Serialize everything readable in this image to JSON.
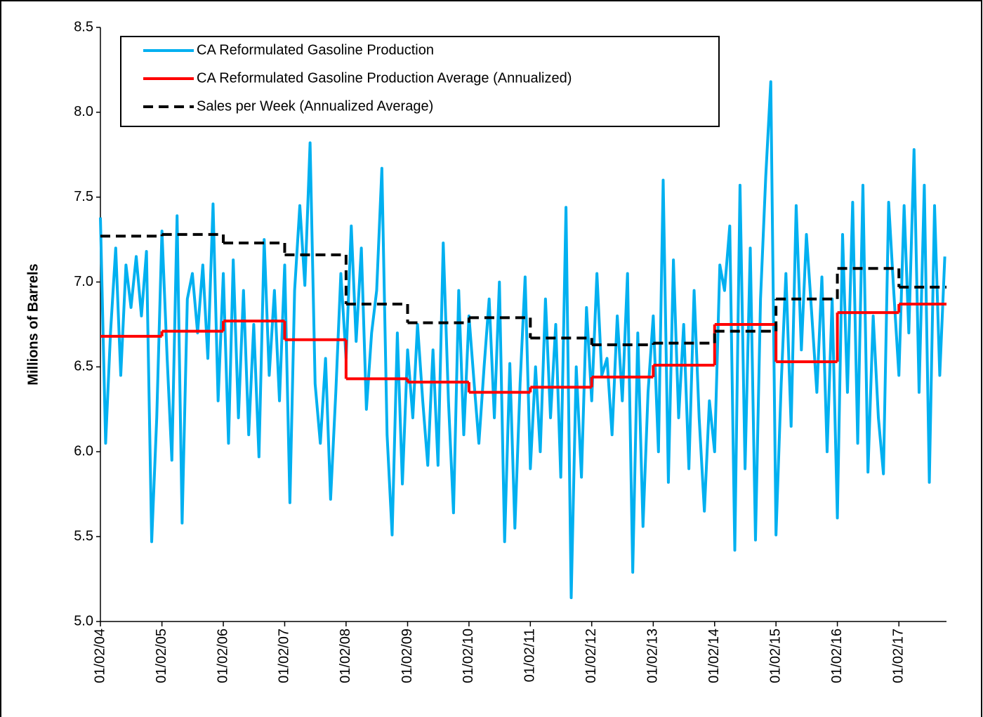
{
  "chart_data": {
    "type": "line",
    "ylabel": "Millions of Barrels",
    "ylim": [
      5,
      8.5
    ],
    "yticks": [
      {
        "value": 5,
        "label": "5.0"
      },
      5.5,
      {
        "value": 6,
        "label": "6.0"
      },
      6.5,
      {
        "value": 7,
        "label": "7.0"
      },
      7.5,
      {
        "value": 8,
        "label": "8.0"
      },
      8.5
    ],
    "xlim": [
      "01/02/04",
      "10/12/17"
    ],
    "xticks": [
      "01/02/04",
      "01/02/05",
      "01/02/06",
      "01/02/07",
      "01/02/08",
      "01/02/09",
      "01/02/10",
      "01/02/11",
      "01/02/12",
      "01/02/13",
      "01/02/14",
      "01/02/15",
      "01/02/16",
      "01/02/17"
    ],
    "legend": "upper left",
    "series": [
      {
        "name": "CA Reformulated Gasoline Production",
        "color": "#00b0f0",
        "step": false,
        "dashed": false,
        "x": [
          "01/02/04",
          "02/02/04",
          "03/02/04",
          "04/02/04",
          "05/02/04",
          "06/02/04",
          "07/02/04",
          "08/02/04",
          "09/02/04",
          "10/02/04",
          "11/02/04",
          "12/02/04",
          "01/02/05",
          "02/02/05",
          "03/02/05",
          "04/02/05",
          "05/02/05",
          "06/02/05",
          "07/02/05",
          "08/02/05",
          "09/02/05",
          "10/02/05",
          "11/02/05",
          "12/02/05",
          "01/02/06",
          "02/02/06",
          "03/02/06",
          "04/02/06",
          "05/02/06",
          "06/02/06",
          "07/02/06",
          "08/02/06",
          "09/02/06",
          "10/02/06",
          "11/02/06",
          "12/02/06",
          "01/02/07",
          "02/02/07",
          "03/02/07",
          "04/02/07",
          "05/02/07",
          "06/02/07",
          "07/02/07",
          "08/02/07",
          "09/02/07",
          "10/02/07",
          "11/02/07",
          "12/02/07",
          "01/02/08",
          "02/02/08",
          "03/02/08",
          "04/02/08",
          "05/02/08",
          "06/02/08",
          "07/02/08",
          "08/02/08",
          "09/02/08",
          "10/02/08",
          "11/02/08",
          "12/02/08",
          "01/02/09",
          "02/02/09",
          "03/02/09",
          "04/02/09",
          "05/02/09",
          "06/02/09",
          "07/02/09",
          "08/02/09",
          "09/02/09",
          "10/02/09",
          "11/02/09",
          "12/02/09",
          "01/02/10",
          "02/02/10",
          "03/02/10",
          "04/02/10",
          "05/02/10",
          "06/02/10",
          "07/02/10",
          "08/02/10",
          "09/02/10",
          "10/02/10",
          "11/02/10",
          "12/02/10",
          "01/02/11",
          "02/02/11",
          "03/02/11",
          "04/02/11",
          "05/02/11",
          "06/02/11",
          "07/02/11",
          "08/02/11",
          "09/02/11",
          "10/02/11",
          "11/02/11",
          "12/02/11",
          "01/02/12",
          "02/02/12",
          "03/02/12",
          "04/02/12",
          "05/02/12",
          "06/02/12",
          "07/02/12",
          "08/02/12",
          "09/02/12",
          "10/02/12",
          "11/02/12",
          "12/02/12",
          "01/02/13",
          "02/02/13",
          "03/02/13",
          "04/02/13",
          "05/02/13",
          "06/02/13",
          "07/02/13",
          "08/02/13",
          "09/02/13",
          "10/02/13",
          "11/02/13",
          "12/02/13",
          "01/02/14",
          "02/02/14",
          "03/02/14",
          "04/02/14",
          "05/02/14",
          "06/02/14",
          "07/02/14",
          "08/02/14",
          "09/02/14",
          "10/02/14",
          "11/02/14",
          "12/02/14",
          "01/02/15",
          "02/02/15",
          "03/02/15",
          "04/02/15",
          "05/02/15",
          "06/02/15",
          "07/02/15",
          "08/02/15",
          "09/02/15",
          "10/02/15",
          "11/02/15",
          "12/02/15",
          "01/02/16",
          "02/02/16",
          "03/02/16",
          "04/02/16",
          "05/02/16",
          "06/02/16",
          "07/02/16",
          "08/02/16",
          "09/02/16",
          "10/02/16",
          "11/02/16",
          "12/02/16",
          "01/02/17",
          "02/02/17",
          "03/02/17",
          "04/02/17",
          "05/02/17",
          "06/02/17",
          "07/02/17",
          "08/02/17",
          "09/02/17",
          "10/02/17"
        ],
        "values": [
          7.38,
          6.05,
          6.7,
          7.2,
          6.45,
          7.1,
          6.85,
          7.15,
          6.8,
          7.18,
          5.47,
          6.2,
          7.3,
          6.55,
          5.95,
          7.39,
          5.58,
          6.9,
          7.05,
          6.7,
          7.1,
          6.55,
          7.46,
          6.3,
          7.05,
          6.05,
          7.13,
          6.2,
          6.95,
          6.1,
          6.75,
          5.97,
          7.25,
          6.45,
          6.95,
          6.3,
          7.1,
          5.7,
          6.95,
          7.45,
          6.98,
          7.82,
          6.4,
          6.05,
          6.55,
          5.72,
          6.35,
          7.05,
          6.55,
          7.33,
          6.65,
          7.2,
          6.25,
          6.7,
          6.95,
          7.67,
          6.1,
          5.51,
          6.7,
          5.81,
          6.6,
          6.2,
          6.75,
          6.3,
          5.92,
          6.6,
          5.92,
          7.23,
          6.3,
          5.64,
          6.95,
          6.1,
          6.8,
          6.4,
          6.05,
          6.5,
          6.9,
          6.2,
          7.0,
          5.47,
          6.52,
          5.55,
          6.4,
          7.03,
          5.9,
          6.5,
          6.0,
          6.9,
          6.2,
          6.75,
          5.85,
          7.44,
          5.14,
          6.5,
          5.85,
          6.85,
          6.3,
          7.05,
          6.45,
          6.55,
          6.1,
          6.8,
          6.3,
          7.05,
          5.29,
          6.7,
          5.56,
          6.35,
          6.8,
          6.0,
          7.6,
          5.82,
          7.13,
          6.2,
          6.75,
          5.9,
          6.95,
          6.2,
          5.65,
          6.3,
          6.0,
          7.1,
          6.95,
          7.33,
          5.42,
          7.57,
          5.9,
          7.2,
          5.48,
          6.9,
          7.62,
          8.18,
          5.51,
          6.4,
          7.05,
          6.15,
          7.45,
          6.6,
          7.28,
          6.82,
          6.35,
          7.03,
          6.0,
          6.9,
          5.61,
          7.28,
          6.35,
          7.47,
          6.05,
          7.57,
          5.88,
          6.8,
          6.2,
          5.87,
          7.47,
          6.95,
          6.45,
          7.45,
          6.7,
          7.78,
          6.35,
          7.57,
          5.82,
          7.45,
          6.45,
          7.15
        ]
      },
      {
        "name": "CA Reformulated Gasoline Production Average (Annualized)",
        "color": "#ff0000",
        "step": true,
        "dashed": false,
        "x": [
          "01/02/04",
          "01/02/05",
          "01/02/06",
          "01/02/07",
          "01/02/08",
          "01/02/09",
          "01/02/10",
          "01/02/11",
          "01/02/12",
          "01/02/13",
          "01/02/14",
          "01/02/15",
          "01/02/16",
          "01/02/17"
        ],
        "values": [
          6.68,
          6.71,
          6.77,
          6.66,
          6.43,
          6.41,
          6.35,
          6.38,
          6.44,
          6.51,
          6.75,
          6.53,
          6.82,
          6.87
        ]
      },
      {
        "name": "Sales per Week (Annualized Average)",
        "color": "#000000",
        "step": true,
        "dashed": true,
        "x": [
          "01/02/04",
          "01/02/05",
          "01/02/06",
          "01/02/07",
          "01/02/08",
          "01/02/09",
          "01/02/10",
          "01/02/11",
          "01/02/12",
          "01/02/13",
          "01/02/14",
          "01/02/15",
          "01/02/16",
          "01/02/17"
        ],
        "values": [
          7.27,
          7.28,
          7.23,
          7.16,
          6.87,
          6.76,
          6.79,
          6.67,
          6.63,
          6.64,
          6.71,
          6.9,
          7.08,
          6.97
        ]
      }
    ]
  }
}
